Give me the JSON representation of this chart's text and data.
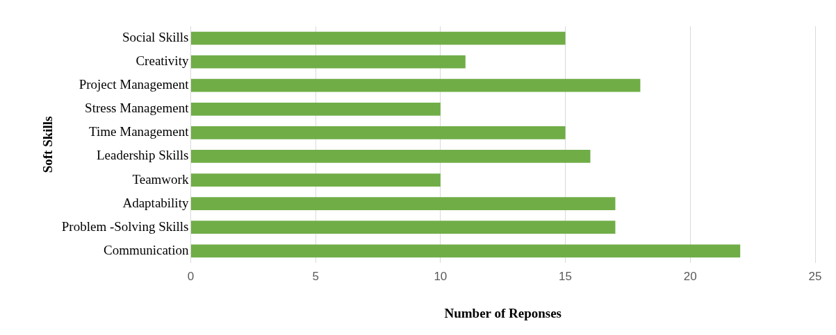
{
  "chart_data": {
    "type": "bar",
    "orientation": "horizontal",
    "categories": [
      "Social Skills",
      "Creativity",
      "Project Management",
      "Stress Management",
      "Time Management",
      "Leadership Skills",
      "Teamwork",
      "Adaptability",
      "Problem -Solving Skills",
      "Communication"
    ],
    "values": [
      15,
      11,
      18,
      10,
      15,
      16,
      10,
      17,
      17,
      22
    ],
    "color": "#70ad47",
    "xlim": [
      0,
      25
    ],
    "xticks": [
      0,
      5,
      10,
      15,
      20,
      25
    ],
    "xlabel": "Number of Reponses",
    "ylabel": "Soft Skills",
    "grid": "x"
  }
}
